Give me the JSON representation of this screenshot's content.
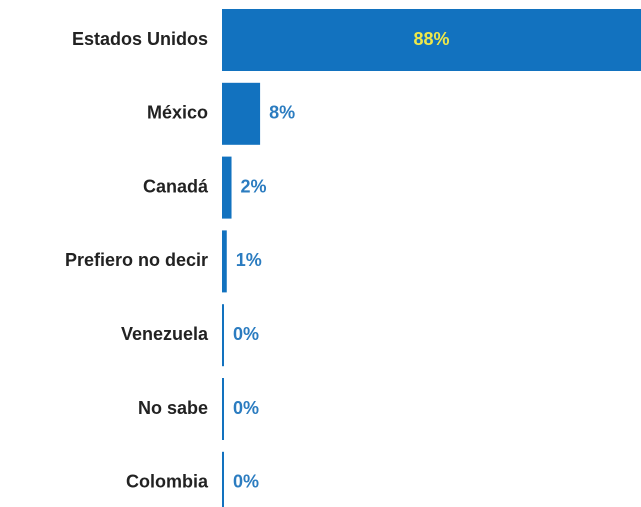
{
  "chart_data": {
    "type": "barh",
    "categories": [
      "Estados Unidos",
      "México",
      "Canadá",
      "Prefiero no decir",
      "Venezuela",
      "No sabe",
      "Colombia"
    ],
    "values": [
      88,
      8,
      2,
      1,
      0,
      0,
      0
    ],
    "value_labels": [
      "88%",
      "8%",
      "2%",
      "1%",
      "0%",
      "0%",
      "0%"
    ],
    "color": "#1272bf",
    "label_color": "#2b7cc0",
    "inside_label_color": "#eee84a"
  }
}
